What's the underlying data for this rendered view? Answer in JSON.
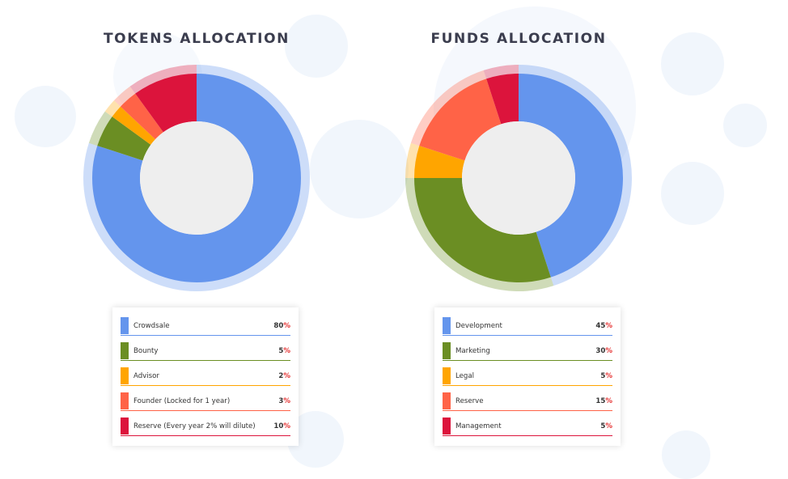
{
  "chart_data": [
    {
      "type": "pie",
      "title": "TOKENS ALLOCATION",
      "categories": [
        "Crowdsale",
        "Bounty",
        "Advisor",
        "Founder (Locked for 1 year)",
        "Reserve (Every year 2% will dilute)"
      ],
      "values": [
        80,
        5,
        2,
        3,
        10
      ],
      "colors": [
        "#6495ed",
        "#6b8e23",
        "#ffa500",
        "#ff6347",
        "#dc143c"
      ],
      "value_suffix": "%"
    },
    {
      "type": "pie",
      "title": "FUNDS ALLOCATION",
      "categories": [
        "Development",
        "Marketing",
        "Legal",
        "Reserve",
        "Management"
      ],
      "values": [
        45,
        30,
        5,
        15,
        5
      ],
      "colors": [
        "#6495ed",
        "#6b8e23",
        "#ffa500",
        "#ff6347",
        "#dc143c"
      ],
      "value_suffix": "%"
    }
  ]
}
